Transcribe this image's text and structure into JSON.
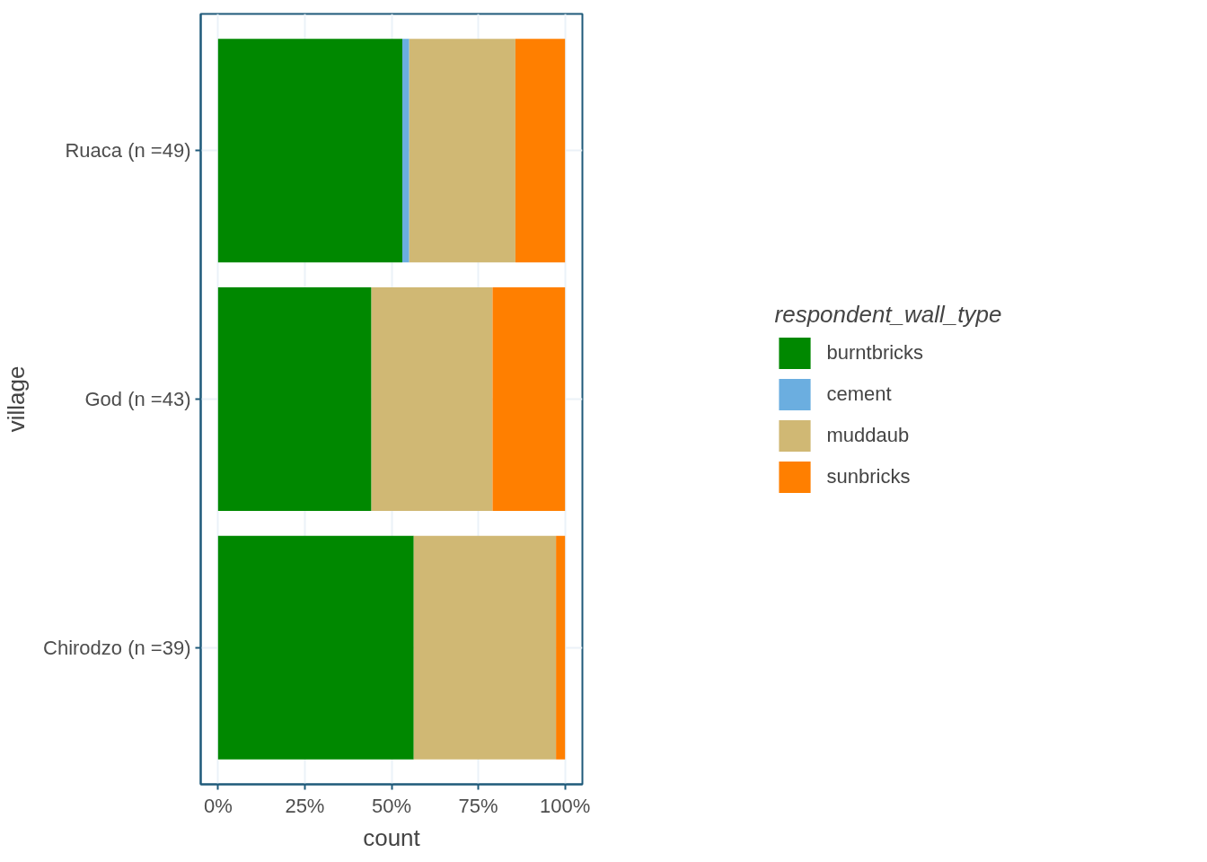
{
  "chart_data": {
    "type": "bar",
    "orientation": "horizontal",
    "stacked": true,
    "xlabel": "count",
    "ylabel": "village",
    "legend_title": "respondent_wall_type",
    "legend": "right",
    "grid": true,
    "categories": [
      "Ruaca (n =49)",
      "God (n =43)",
      "Chirodzo (n =39)"
    ],
    "series": [
      {
        "name": "burntbricks",
        "color": "#008800",
        "values": [
          53.1,
          44.2,
          56.4
        ]
      },
      {
        "name": "cement",
        "color": "#6baee0",
        "values": [
          2.0,
          0,
          0
        ]
      },
      {
        "name": "muddaub",
        "color": "#d0b874",
        "values": [
          30.6,
          34.9,
          41.0
        ]
      },
      {
        "name": "sunbricks",
        "color": "#ff7f00",
        "values": [
          14.3,
          20.9,
          2.6
        ]
      }
    ],
    "xlim": [
      -5,
      105
    ],
    "xticks": [
      {
        "value": 0,
        "label": "0%"
      },
      {
        "value": 25,
        "label": "25%"
      },
      {
        "value": 50,
        "label": "50%"
      },
      {
        "value": 75,
        "label": "75%"
      },
      {
        "value": 100,
        "label": "100%"
      }
    ]
  }
}
